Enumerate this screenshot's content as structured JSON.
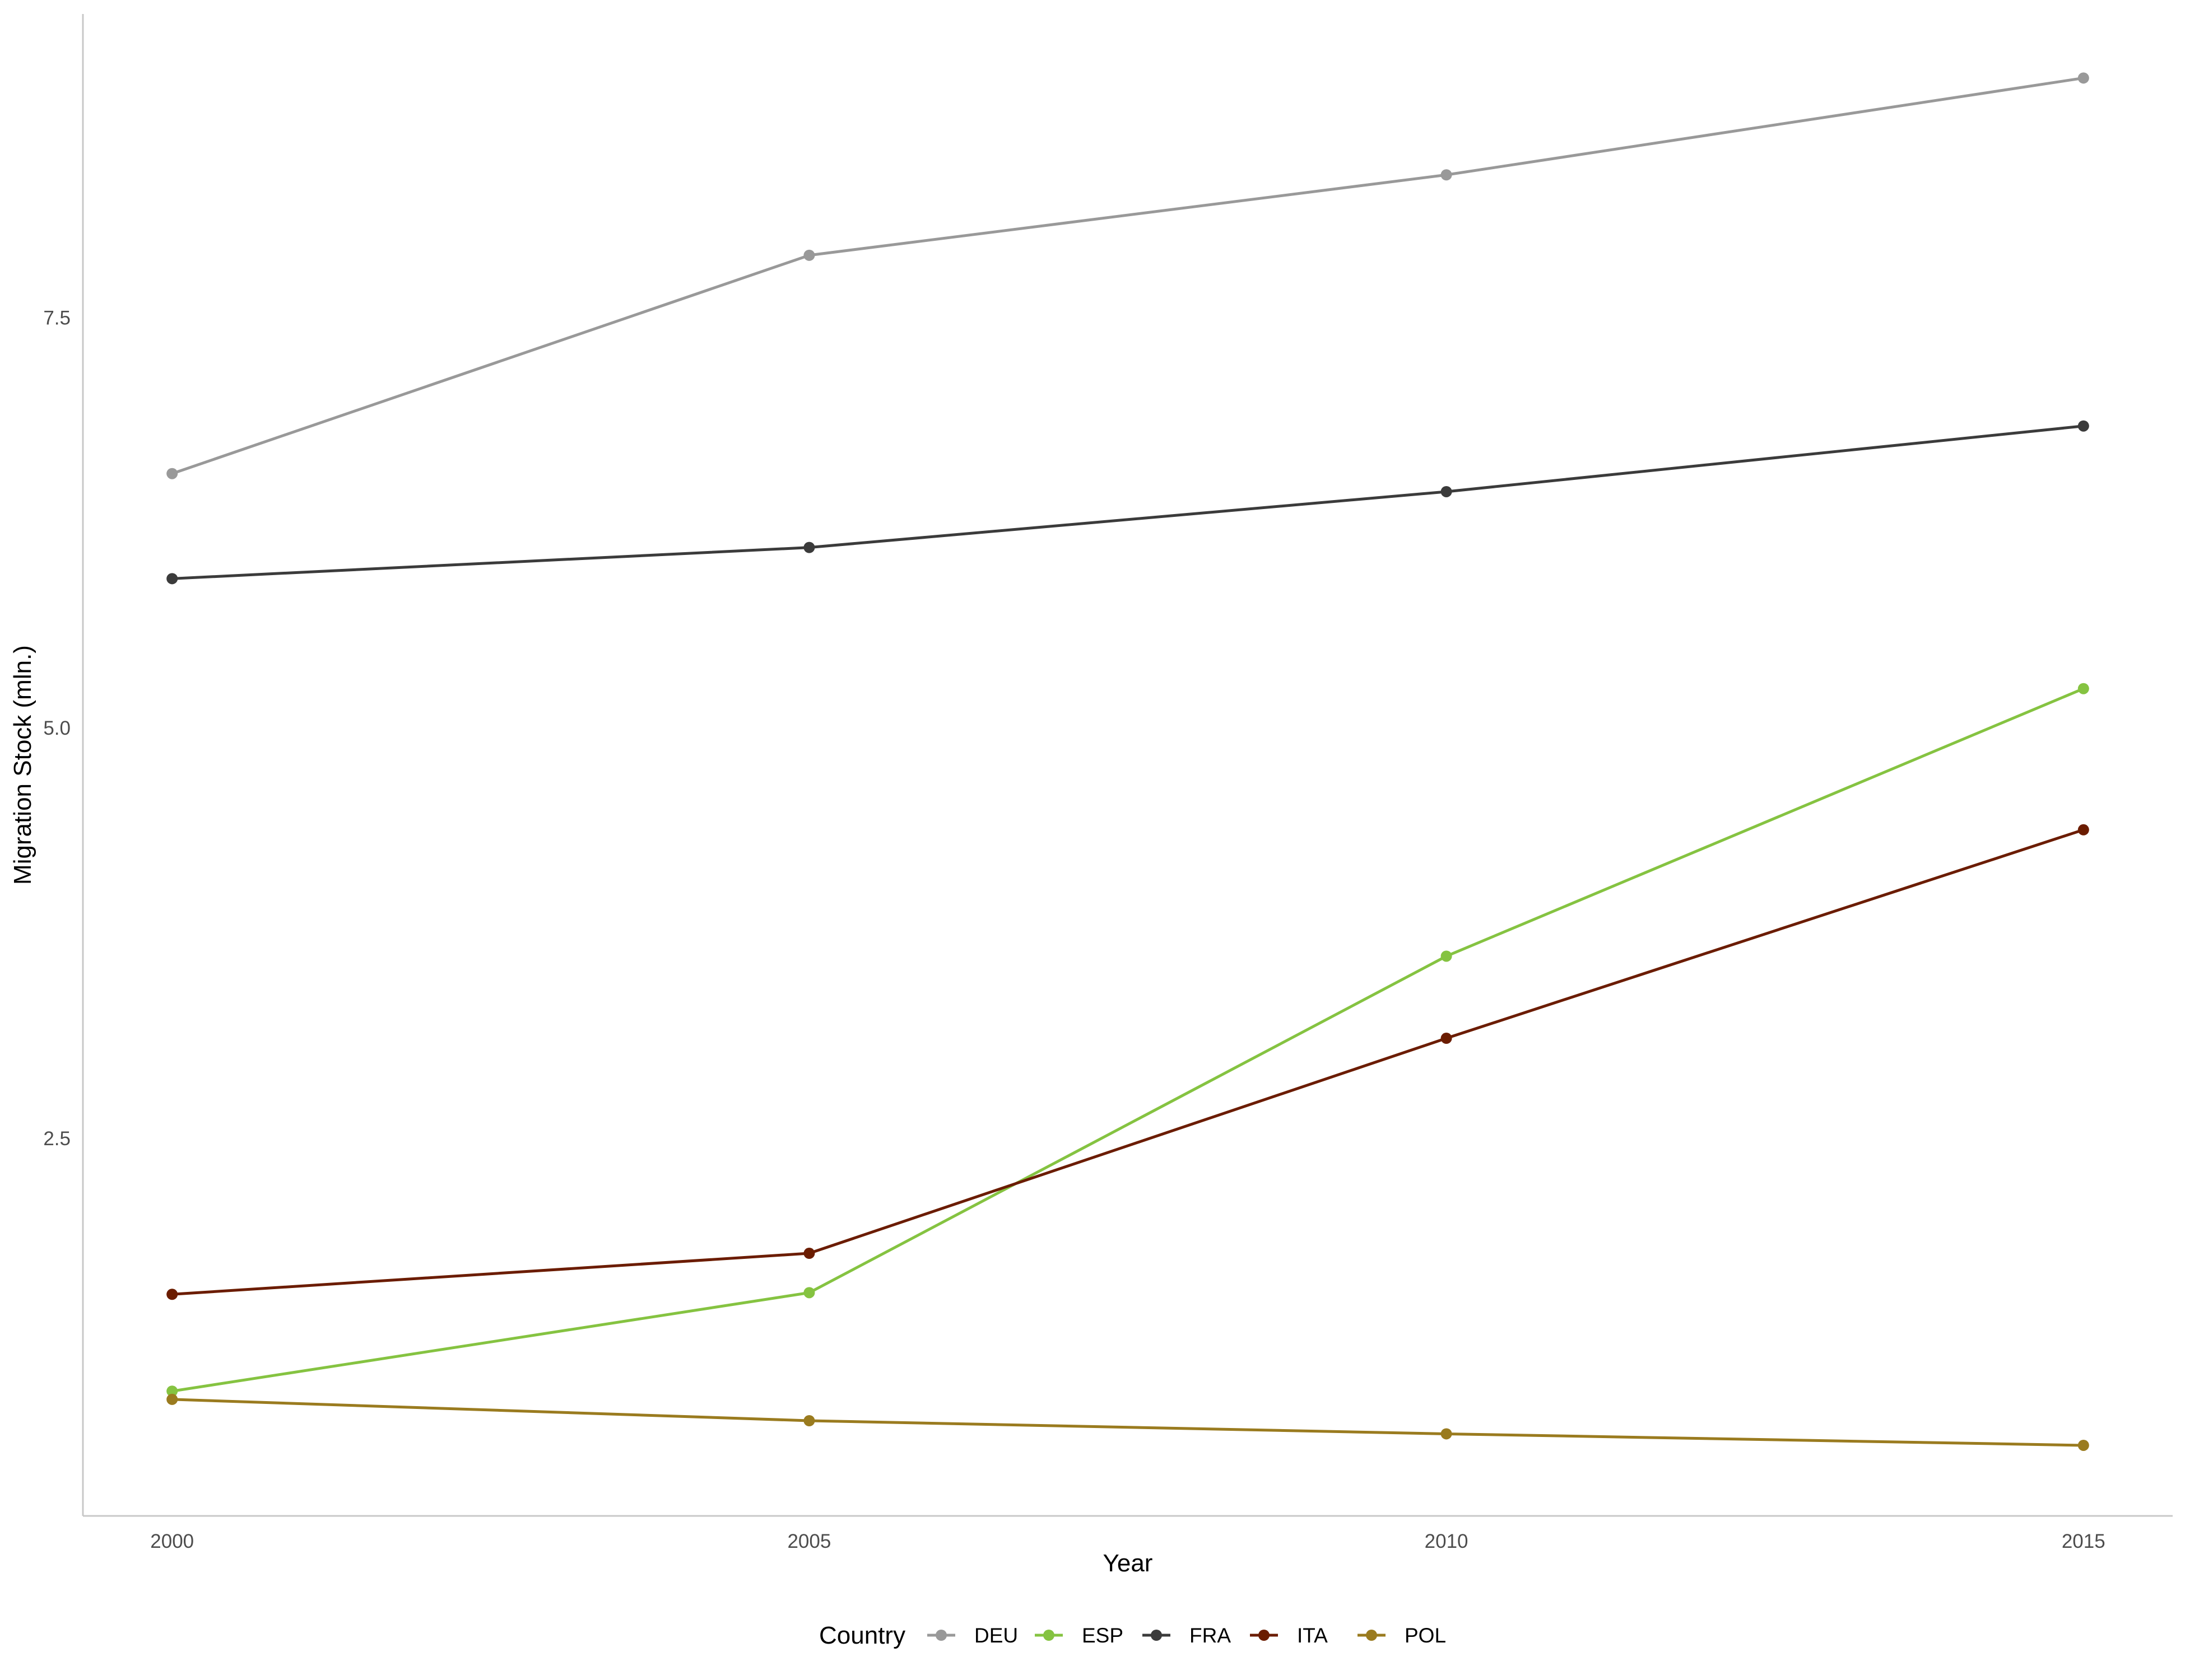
{
  "chart_data": {
    "type": "line",
    "title": "",
    "xlabel": "Year",
    "ylabel": "Migration Stock (mln.)",
    "x": [
      2000,
      2005,
      2010,
      2015
    ],
    "x_ticks": [
      "2000",
      "2005",
      "2010",
      "2015"
    ],
    "y_ticks": [
      "2.5",
      "5.0",
      "7.5"
    ],
    "xlim": [
      1999.3,
      2015.7
    ],
    "ylim": [
      0.2,
      9.35
    ],
    "grid": false,
    "legend": {
      "title": "Country",
      "position": "bottom"
    },
    "series": [
      {
        "name": "DEU",
        "color": "#999999",
        "values": [
          6.55,
          7.88,
          8.37,
          8.96
        ]
      },
      {
        "name": "ESP",
        "color": "#85c341",
        "values": [
          0.96,
          1.56,
          3.61,
          5.24
        ]
      },
      {
        "name": "FRA",
        "color": "#3b3b3b",
        "values": [
          5.91,
          6.1,
          6.44,
          6.84
        ]
      },
      {
        "name": "ITA",
        "color": "#6b1c00",
        "values": [
          1.55,
          1.8,
          3.11,
          4.38
        ]
      },
      {
        "name": "POL",
        "color": "#9a7b1f",
        "values": [
          0.91,
          0.78,
          0.7,
          0.63
        ]
      }
    ]
  }
}
